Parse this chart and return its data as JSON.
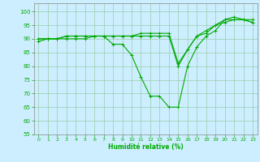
{
  "xlabel": "Humidité relative (%)",
  "background_color": "#cceeff",
  "grid_color": "#99ccaa",
  "line_color": "#00aa00",
  "xlim": [
    -0.5,
    23.5
  ],
  "ylim": [
    55,
    103
  ],
  "yticks": [
    55,
    60,
    65,
    70,
    75,
    80,
    85,
    90,
    95,
    100
  ],
  "xticks": [
    0,
    1,
    2,
    3,
    4,
    5,
    6,
    7,
    8,
    9,
    10,
    11,
    12,
    13,
    14,
    15,
    16,
    17,
    18,
    19,
    20,
    21,
    22,
    23
  ],
  "series": [
    [
      89,
      90,
      90,
      90,
      90,
      90,
      91,
      91,
      88,
      88,
      84,
      76,
      69,
      69,
      65,
      65,
      80,
      87,
      91,
      93,
      97,
      98,
      97,
      96
    ],
    [
      90,
      90,
      90,
      91,
      91,
      91,
      91,
      91,
      91,
      91,
      91,
      91,
      91,
      91,
      91,
      80,
      86,
      91,
      92,
      95,
      96,
      97,
      97,
      96
    ],
    [
      90,
      90,
      90,
      91,
      91,
      91,
      91,
      91,
      91,
      91,
      91,
      92,
      92,
      92,
      92,
      81,
      86,
      91,
      93,
      95,
      97,
      97,
      97,
      97
    ]
  ]
}
